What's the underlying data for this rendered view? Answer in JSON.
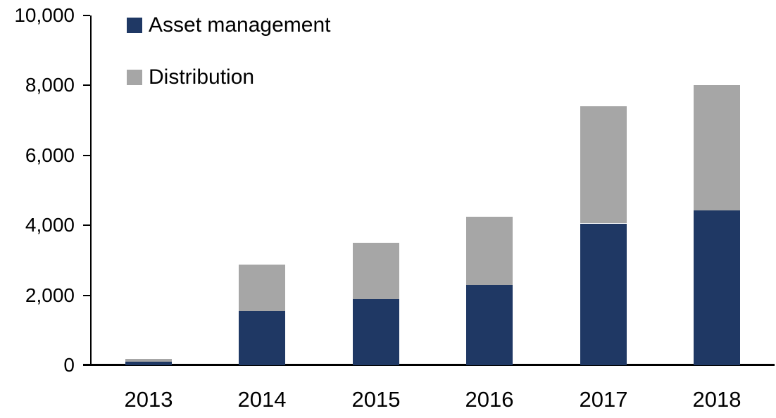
{
  "chart_data": {
    "type": "bar",
    "stacked": true,
    "title": "",
    "xlabel": "",
    "ylabel": "",
    "categories": [
      "2013",
      "2014",
      "2015",
      "2016",
      "2017",
      "2018"
    ],
    "series": [
      {
        "name": "Asset management",
        "color": "#1F3864",
        "values": [
          100,
          1540,
          1900,
          2300,
          4050,
          4420
        ]
      },
      {
        "name": "Distribution",
        "color": "#A6A6A6",
        "values": [
          80,
          1330,
          1600,
          1950,
          3350,
          3580
        ]
      }
    ],
    "totals": [
      180,
      2870,
      3500,
      4250,
      7400,
      8000
    ],
    "ylim": [
      0,
      10000
    ],
    "y_ticks": [
      0,
      2000,
      4000,
      6000,
      8000,
      10000
    ],
    "y_tick_labels": [
      "0",
      "2,000",
      "4,000",
      "6,000",
      "8,000",
      "10,000"
    ],
    "grid": false,
    "legend_position": "top-left",
    "axis_color": "#000000",
    "background_color": "#FFFFFF"
  }
}
